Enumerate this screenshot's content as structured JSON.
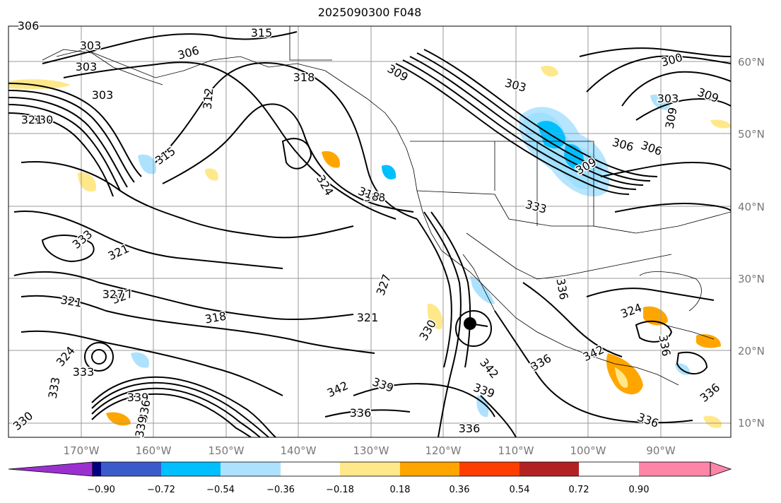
{
  "title": "2025090300 F048",
  "map": {
    "lon_labels": [
      "170°W",
      "160°W",
      "150°W",
      "140°W",
      "130°W",
      "120°W",
      "110°W",
      "100°W",
      "90°W"
    ],
    "lat_labels": [
      "60°N",
      "50°N",
      "40°N",
      "30°N",
      "20°N",
      "10°N"
    ],
    "contour_labels": [
      "306",
      "315",
      "303",
      "306",
      "303",
      "300",
      "318",
      "303",
      "303",
      "309",
      "330",
      "321",
      "312",
      "315",
      "318",
      "324",
      "318",
      "333",
      "303",
      "309",
      "306",
      "306",
      "309",
      "309",
      "333",
      "321",
      "327",
      "321",
      "318",
      "321",
      "330",
      "324",
      "327",
      "333",
      "333",
      "339",
      "336",
      "339",
      "342",
      "342",
      "339",
      "336",
      "336",
      "336",
      "336",
      "342",
      "336",
      "339",
      "324",
      "336",
      "327",
      "330",
      "336"
    ],
    "hurricane_marker": "storm-center"
  },
  "colorbar": {
    "ticks": [
      "−0.90",
      "−0.72",
      "−0.54",
      "−0.36",
      "−0.18",
      "0.18",
      "0.36",
      "0.54",
      "0.72",
      "0.90"
    ],
    "colors": [
      "#9b30d0",
      "#000080",
      "#3a5bc9",
      "#00bfff",
      "#ade2ff",
      "#ffffff",
      "#ffe88a",
      "#ffa500",
      "#ff3d00",
      "#b22222",
      "#ff85a8"
    ]
  }
}
